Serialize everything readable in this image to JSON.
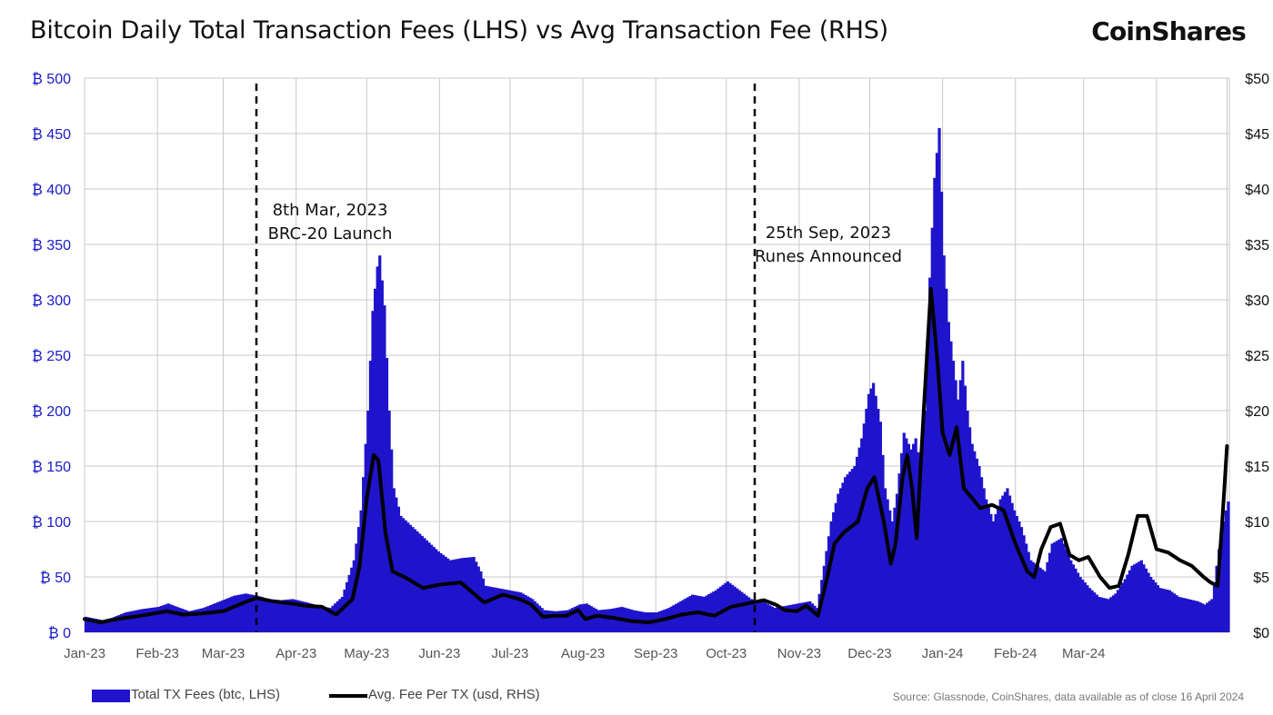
{
  "header": {
    "title": "Bitcoin Daily Total Transaction Fees (LHS) vs Avg Transaction Fee (RHS)",
    "brand": "CoinShares"
  },
  "legend": {
    "bars_label": "Total TX Fees (btc, LHS)",
    "line_label": "Avg. Fee Per TX (usd, RHS)"
  },
  "source": "Source: Glassnode, CoinShares, data available as of close 16 April 2024",
  "colors": {
    "bars": "#1f14cc",
    "line": "#000000",
    "grid": "#c8c8c8",
    "left_axis": "#1a1acc"
  },
  "chart_data": {
    "type": "bar+line",
    "title": "Bitcoin Daily Total Transaction Fees (LHS) vs Avg Transaction Fee (RHS)",
    "x_range": [
      "2023-01-01",
      "2024-04-16"
    ],
    "x_tick_labels": [
      "Jan-23",
      "Feb-23",
      "Mar-23",
      "Apr-23",
      "May-23",
      "Jun-23",
      "Jul-23",
      "Aug-23",
      "Sep-23",
      "Oct-23",
      "Nov-23",
      "Dec-23",
      "Jan-24",
      "Feb-24",
      "Mar-24"
    ],
    "y_left": {
      "lim": [
        0,
        500
      ],
      "ticks": [
        0,
        50,
        100,
        150,
        200,
        250,
        300,
        350,
        400,
        450,
        500
      ],
      "tick_labels": [
        "₿ 0",
        "₿ 50",
        "₿ 100",
        "₿ 150",
        "₿ 200",
        "₿ 250",
        "₿ 300",
        "₿ 350",
        "₿ 400",
        "₿ 450",
        "₿ 500"
      ]
    },
    "y_right": {
      "lim": [
        0,
        50
      ],
      "ticks": [
        0,
        5,
        10,
        15,
        20,
        25,
        30,
        35,
        40,
        45,
        50
      ],
      "tick_labels": [
        "$0",
        "$5",
        "$10",
        "$15",
        "$20",
        "$25",
        "$30",
        "$35",
        "$40",
        "$45",
        "$50"
      ]
    },
    "grid": true,
    "legend_position": "bottom-left",
    "series": [
      {
        "name": "Total TX Fees (btc, LHS)",
        "type": "bar",
        "axis": "left",
        "points": [
          [
            "2023-01-01",
            14
          ],
          [
            "2023-01-08",
            11
          ],
          [
            "2023-01-12",
            13
          ],
          [
            "2023-01-18",
            18
          ],
          [
            "2023-01-25",
            21
          ],
          [
            "2023-02-01",
            23
          ],
          [
            "2023-02-05",
            26
          ],
          [
            "2023-02-10",
            22
          ],
          [
            "2023-02-14",
            19
          ],
          [
            "2023-02-20",
            22
          ],
          [
            "2023-02-26",
            27
          ],
          [
            "2023-03-05",
            33
          ],
          [
            "2023-03-10",
            35
          ],
          [
            "2023-03-15",
            33
          ],
          [
            "2023-03-20",
            30
          ],
          [
            "2023-03-25",
            29
          ],
          [
            "2023-03-30",
            30
          ],
          [
            "2023-04-05",
            27
          ],
          [
            "2023-04-10",
            24
          ],
          [
            "2023-04-15",
            22
          ],
          [
            "2023-04-20",
            32
          ],
          [
            "2023-04-25",
            65
          ],
          [
            "2023-04-28",
            110
          ],
          [
            "2023-05-01",
            200
          ],
          [
            "2023-05-03",
            290
          ],
          [
            "2023-05-05",
            330
          ],
          [
            "2023-05-06",
            340
          ],
          [
            "2023-05-08",
            295
          ],
          [
            "2023-05-10",
            200
          ],
          [
            "2023-05-12",
            130
          ],
          [
            "2023-05-15",
            105
          ],
          [
            "2023-05-20",
            95
          ],
          [
            "2023-05-25",
            85
          ],
          [
            "2023-05-31",
            73
          ],
          [
            "2023-06-05",
            65
          ],
          [
            "2023-06-10",
            67
          ],
          [
            "2023-06-15",
            68
          ],
          [
            "2023-06-18",
            55
          ],
          [
            "2023-06-20",
            42
          ],
          [
            "2023-06-25",
            40
          ],
          [
            "2023-06-30",
            38
          ],
          [
            "2023-07-05",
            36
          ],
          [
            "2023-07-10",
            30
          ],
          [
            "2023-07-15",
            20
          ],
          [
            "2023-07-20",
            19
          ],
          [
            "2023-07-25",
            20
          ],
          [
            "2023-07-30",
            25
          ],
          [
            "2023-08-02",
            26
          ],
          [
            "2023-08-07",
            20
          ],
          [
            "2023-08-12",
            21
          ],
          [
            "2023-08-17",
            23
          ],
          [
            "2023-08-22",
            20
          ],
          [
            "2023-08-27",
            18
          ],
          [
            "2023-09-01",
            18
          ],
          [
            "2023-09-06",
            22
          ],
          [
            "2023-09-11",
            28
          ],
          [
            "2023-09-16",
            34
          ],
          [
            "2023-09-21",
            32
          ],
          [
            "2023-09-26",
            38
          ],
          [
            "2023-10-01",
            46
          ],
          [
            "2023-10-06",
            38
          ],
          [
            "2023-10-11",
            30
          ],
          [
            "2023-10-16",
            28
          ],
          [
            "2023-10-21",
            22
          ],
          [
            "2023-10-26",
            24
          ],
          [
            "2023-10-31",
            26
          ],
          [
            "2023-11-05",
            28
          ],
          [
            "2023-11-08",
            22
          ],
          [
            "2023-11-11",
            60
          ],
          [
            "2023-11-14",
            100
          ],
          [
            "2023-11-17",
            125
          ],
          [
            "2023-11-20",
            140
          ],
          [
            "2023-11-24",
            150
          ],
          [
            "2023-11-27",
            175
          ],
          [
            "2023-11-30",
            215
          ],
          [
            "2023-12-02",
            225
          ],
          [
            "2023-12-05",
            190
          ],
          [
            "2023-12-07",
            130
          ],
          [
            "2023-12-10",
            100
          ],
          [
            "2023-12-12",
            125
          ],
          [
            "2023-12-15",
            180
          ],
          [
            "2023-12-18",
            165
          ],
          [
            "2023-12-20",
            175
          ],
          [
            "2023-12-22",
            150
          ],
          [
            "2023-12-24",
            200
          ],
          [
            "2023-12-26",
            320
          ],
          [
            "2023-12-28",
            410
          ],
          [
            "2023-12-30",
            455
          ],
          [
            "2024-01-01",
            340
          ],
          [
            "2024-01-03",
            280
          ],
          [
            "2024-01-05",
            245
          ],
          [
            "2024-01-07",
            210
          ],
          [
            "2024-01-09",
            245
          ],
          [
            "2024-01-11",
            200
          ],
          [
            "2024-01-13",
            170
          ],
          [
            "2024-01-16",
            150
          ],
          [
            "2024-01-19",
            120
          ],
          [
            "2024-01-22",
            100
          ],
          [
            "2024-01-25",
            120
          ],
          [
            "2024-01-28",
            130
          ],
          [
            "2024-01-31",
            110
          ],
          [
            "2024-02-03",
            95
          ],
          [
            "2024-02-07",
            65
          ],
          [
            "2024-02-10",
            60
          ],
          [
            "2024-02-13",
            55
          ],
          [
            "2024-02-16",
            80
          ],
          [
            "2024-02-20",
            85
          ],
          [
            "2024-02-24",
            65
          ],
          [
            "2024-02-28",
            50
          ],
          [
            "2024-03-03",
            40
          ],
          [
            "2024-03-07",
            32
          ],
          [
            "2024-03-11",
            30
          ],
          [
            "2024-03-14",
            35
          ],
          [
            "2024-03-18",
            48
          ],
          [
            "2024-03-21",
            60
          ],
          [
            "2024-03-25",
            65
          ],
          [
            "2024-03-29",
            50
          ],
          [
            "2024-04-02",
            40
          ],
          [
            "2024-04-06",
            38
          ],
          [
            "2024-04-10",
            32
          ],
          [
            "2024-04-14",
            30
          ],
          [
            "2024-04-18",
            28
          ],
          [
            "2024-04-21",
            25
          ],
          [
            "2024-04-24",
            30
          ],
          [
            "2024-04-26",
            60
          ],
          [
            "2024-04-28",
            90
          ],
          [
            "2024-04-30",
            110
          ],
          [
            "2024-05-01",
            118
          ]
        ]
      },
      {
        "name": "Avg. Fee Per TX (usd, RHS)",
        "type": "line",
        "axis": "right",
        "points": [
          [
            "2023-01-01",
            1.2
          ],
          [
            "2023-01-08",
            0.9
          ],
          [
            "2023-01-15",
            1.2
          ],
          [
            "2023-01-25",
            1.5
          ],
          [
            "2023-02-05",
            1.9
          ],
          [
            "2023-02-12",
            1.6
          ],
          [
            "2023-02-20",
            1.7
          ],
          [
            "2023-03-01",
            1.9
          ],
          [
            "2023-03-10",
            2.7
          ],
          [
            "2023-03-15",
            3.1
          ],
          [
            "2023-03-22",
            2.8
          ],
          [
            "2023-03-30",
            2.6
          ],
          [
            "2023-04-05",
            2.4
          ],
          [
            "2023-04-12",
            2.3
          ],
          [
            "2023-04-18",
            1.6
          ],
          [
            "2023-04-25",
            3.0
          ],
          [
            "2023-04-28",
            6.0
          ],
          [
            "2023-05-01",
            12.0
          ],
          [
            "2023-05-04",
            16.0
          ],
          [
            "2023-05-06",
            15.5
          ],
          [
            "2023-05-09",
            9.0
          ],
          [
            "2023-05-12",
            5.5
          ],
          [
            "2023-05-17",
            5.0
          ],
          [
            "2023-05-25",
            4.0
          ],
          [
            "2023-06-01",
            4.3
          ],
          [
            "2023-06-10",
            4.5
          ],
          [
            "2023-06-15",
            3.6
          ],
          [
            "2023-06-20",
            2.7
          ],
          [
            "2023-06-28",
            3.4
          ],
          [
            "2023-07-05",
            3.0
          ],
          [
            "2023-07-10",
            2.5
          ],
          [
            "2023-07-15",
            1.4
          ],
          [
            "2023-07-20",
            1.5
          ],
          [
            "2023-07-25",
            1.5
          ],
          [
            "2023-07-30",
            2.0
          ],
          [
            "2023-08-02",
            1.2
          ],
          [
            "2023-08-07",
            1.5
          ],
          [
            "2023-08-14",
            1.3
          ],
          [
            "2023-08-22",
            1.0
          ],
          [
            "2023-08-29",
            0.9
          ],
          [
            "2023-09-05",
            1.2
          ],
          [
            "2023-09-12",
            1.6
          ],
          [
            "2023-09-19",
            1.8
          ],
          [
            "2023-09-26",
            1.5
          ],
          [
            "2023-10-03",
            2.3
          ],
          [
            "2023-10-10",
            2.6
          ],
          [
            "2023-10-17",
            2.9
          ],
          [
            "2023-10-22",
            2.5
          ],
          [
            "2023-10-26",
            2.0
          ],
          [
            "2023-10-31",
            1.9
          ],
          [
            "2023-11-04",
            2.4
          ],
          [
            "2023-11-09",
            1.5
          ],
          [
            "2023-11-13",
            5.0
          ],
          [
            "2023-11-16",
            8.0
          ],
          [
            "2023-11-20",
            9.0
          ],
          [
            "2023-11-26",
            10.0
          ],
          [
            "2023-11-30",
            13.0
          ],
          [
            "2023-12-03",
            14.0
          ],
          [
            "2023-12-07",
            10.0
          ],
          [
            "2023-12-10",
            6.2
          ],
          [
            "2023-12-12",
            8.0
          ],
          [
            "2023-12-15",
            14.0
          ],
          [
            "2023-12-17",
            16.0
          ],
          [
            "2023-12-19",
            13.0
          ],
          [
            "2023-12-21",
            8.5
          ],
          [
            "2023-12-24",
            20.0
          ],
          [
            "2023-12-27",
            31.0
          ],
          [
            "2023-12-30",
            24.0
          ],
          [
            "2024-01-01",
            18.0
          ],
          [
            "2024-01-04",
            16.0
          ],
          [
            "2024-01-07",
            18.5
          ],
          [
            "2024-01-10",
            13.0
          ],
          [
            "2024-01-14",
            12.0
          ],
          [
            "2024-01-17",
            11.2
          ],
          [
            "2024-01-22",
            11.5
          ],
          [
            "2024-01-27",
            11.0
          ],
          [
            "2024-02-01",
            8.0
          ],
          [
            "2024-02-06",
            5.5
          ],
          [
            "2024-02-09",
            5.0
          ],
          [
            "2024-02-12",
            7.5
          ],
          [
            "2024-02-16",
            9.5
          ],
          [
            "2024-02-20",
            9.8
          ],
          [
            "2024-02-24",
            7.0
          ],
          [
            "2024-02-28",
            6.5
          ],
          [
            "2024-03-03",
            6.8
          ],
          [
            "2024-03-08",
            5.0
          ],
          [
            "2024-03-12",
            4.0
          ],
          [
            "2024-03-16",
            4.2
          ],
          [
            "2024-03-20",
            7.0
          ],
          [
            "2024-03-24",
            10.5
          ],
          [
            "2024-03-28",
            10.5
          ],
          [
            "2024-04-01",
            7.5
          ],
          [
            "2024-04-06",
            7.2
          ],
          [
            "2024-04-11",
            6.5
          ],
          [
            "2024-04-16",
            6.0
          ],
          [
            "2024-04-21",
            5.0
          ],
          [
            "2024-04-24",
            4.5
          ],
          [
            "2024-04-27",
            4.2
          ],
          [
            "2024-04-29",
            10.0
          ],
          [
            "2024-05-01",
            16.8
          ]
        ]
      }
    ],
    "annotations": [
      {
        "date": "2023-03-24",
        "lines": [
          "8th Mar, 2023",
          "BRC-20 Launch"
        ]
      },
      {
        "date": "2023-10-15",
        "lines": [
          "25th Sep, 2023",
          "Runes Announced"
        ]
      }
    ]
  }
}
